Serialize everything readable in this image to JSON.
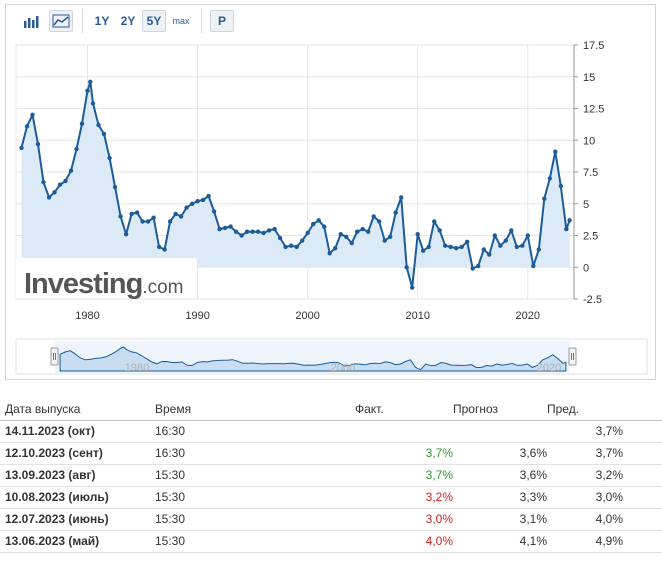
{
  "toolbar": {
    "ranges": [
      "1Y",
      "2Y",
      "5Y"
    ],
    "max_label": "max",
    "p_label": "P",
    "active_range": "5Y"
  },
  "watermark": {
    "brand": "Investing",
    "suffix": ".com"
  },
  "navigator": {
    "labels": [
      "1980",
      "2000",
      "2020"
    ]
  },
  "colors": {
    "line": "#1d5c97",
    "fill": "#dceaf8",
    "grid": "#e6e6e6",
    "green": "#2e9b2e",
    "red": "#d52020"
  },
  "chart_data": {
    "type": "line",
    "x_ticks": [
      "1980",
      "1990",
      "2000",
      "2010",
      "2020"
    ],
    "y_ticks": [
      "17.5",
      "15",
      "12.5",
      "10",
      "7.5",
      "5",
      "2.5",
      "0",
      "-2.5"
    ],
    "xlim": [
      1973.5,
      2024.2
    ],
    "ylim": [
      -2.5,
      17.5
    ],
    "grid": true,
    "series": [
      {
        "x": [
          1974.0,
          1974.5,
          1975.0,
          1975.5,
          1976.0,
          1976.5,
          1977.0,
          1977.5,
          1978.0,
          1978.5,
          1979.0,
          1979.5,
          1980.0,
          1980.25,
          1980.5,
          1981.0,
          1981.5,
          1982.0,
          1982.5,
          1983.0,
          1983.5,
          1984.0,
          1984.5,
          1985.0,
          1985.5,
          1986.0,
          1986.5,
          1987.0,
          1987.5,
          1988.0,
          1988.5,
          1989.0,
          1989.5,
          1990.0,
          1990.5,
          1991.0,
          1991.5,
          1992.0,
          1992.5,
          1993.0,
          1993.5,
          1994.0,
          1994.5,
          1995.0,
          1995.5,
          1996.0,
          1996.5,
          1997.0,
          1997.5,
          1998.0,
          1998.5,
          1999.0,
          1999.5,
          2000.0,
          2000.5,
          2001.0,
          2001.5,
          2002.0,
          2002.5,
          2003.0,
          2003.5,
          2004.0,
          2004.5,
          2005.0,
          2005.5,
          2006.0,
          2006.5,
          2007.0,
          2007.5,
          2008.0,
          2008.5,
          2009.0,
          2009.5,
          2010.0,
          2010.5,
          2011.0,
          2011.5,
          2012.0,
          2012.5,
          2013.0,
          2013.5,
          2014.0,
          2014.5,
          2015.0,
          2015.5,
          2016.0,
          2016.5,
          2017.0,
          2017.5,
          2018.0,
          2018.5,
          2019.0,
          2019.5,
          2020.0,
          2020.5,
          2021.0,
          2021.5,
          2022.0,
          2022.5,
          2023.0,
          2023.5,
          2023.8
        ],
        "y": [
          9.4,
          11.1,
          12.0,
          9.7,
          6.7,
          5.5,
          5.9,
          6.5,
          6.8,
          7.6,
          9.3,
          11.3,
          13.9,
          14.6,
          12.9,
          11.2,
          10.5,
          8.6,
          6.3,
          4.0,
          2.6,
          4.2,
          4.3,
          3.6,
          3.6,
          3.9,
          1.6,
          1.4,
          3.6,
          4.2,
          4.0,
          4.7,
          5.0,
          5.2,
          5.3,
          5.6,
          4.4,
          3.0,
          3.1,
          3.2,
          2.8,
          2.5,
          2.8,
          2.8,
          2.8,
          2.7,
          2.9,
          3.0,
          2.3,
          1.6,
          1.7,
          1.6,
          2.1,
          2.7,
          3.4,
          3.7,
          3.2,
          1.1,
          1.5,
          2.6,
          2.4,
          1.9,
          2.8,
          3.0,
          2.8,
          4.0,
          3.6,
          2.1,
          2.4,
          4.3,
          5.5,
          0.0,
          -1.6,
          2.6,
          1.3,
          1.6,
          3.6,
          2.9,
          1.7,
          1.6,
          1.5,
          1.6,
          2.0,
          -0.1,
          0.1,
          1.4,
          1.0,
          2.5,
          1.7,
          2.1,
          2.9,
          1.6,
          1.7,
          2.5,
          0.1,
          1.4,
          5.4,
          7.0,
          9.1,
          6.4,
          3.0,
          3.7
        ]
      }
    ]
  },
  "table": {
    "headers": [
      "Дата выпуска",
      "Время",
      "Факт.",
      "Прогноз",
      "Пред."
    ],
    "rows": [
      {
        "date": "14.11.2023 (окт)",
        "time": "16:30",
        "actual": "",
        "forecast": "",
        "previous": "3,7%",
        "status": ""
      },
      {
        "date": "12.10.2023 (сент)",
        "time": "16:30",
        "actual": "3,7%",
        "forecast": "3,6%",
        "previous": "3,7%",
        "status": "green"
      },
      {
        "date": "13.09.2023 (авг)",
        "time": "15:30",
        "actual": "3,7%",
        "forecast": "3,6%",
        "previous": "3,2%",
        "status": "green"
      },
      {
        "date": "10.08.2023 (июль)",
        "time": "15:30",
        "actual": "3,2%",
        "forecast": "3,3%",
        "previous": "3,0%",
        "status": "red"
      },
      {
        "date": "12.07.2023 (июнь)",
        "time": "15:30",
        "actual": "3,0%",
        "forecast": "3,1%",
        "previous": "4,0%",
        "status": "red"
      },
      {
        "date": "13.06.2023 (май)",
        "time": "15:30",
        "actual": "4,0%",
        "forecast": "4,1%",
        "previous": "4,9%",
        "status": "red"
      }
    ]
  }
}
